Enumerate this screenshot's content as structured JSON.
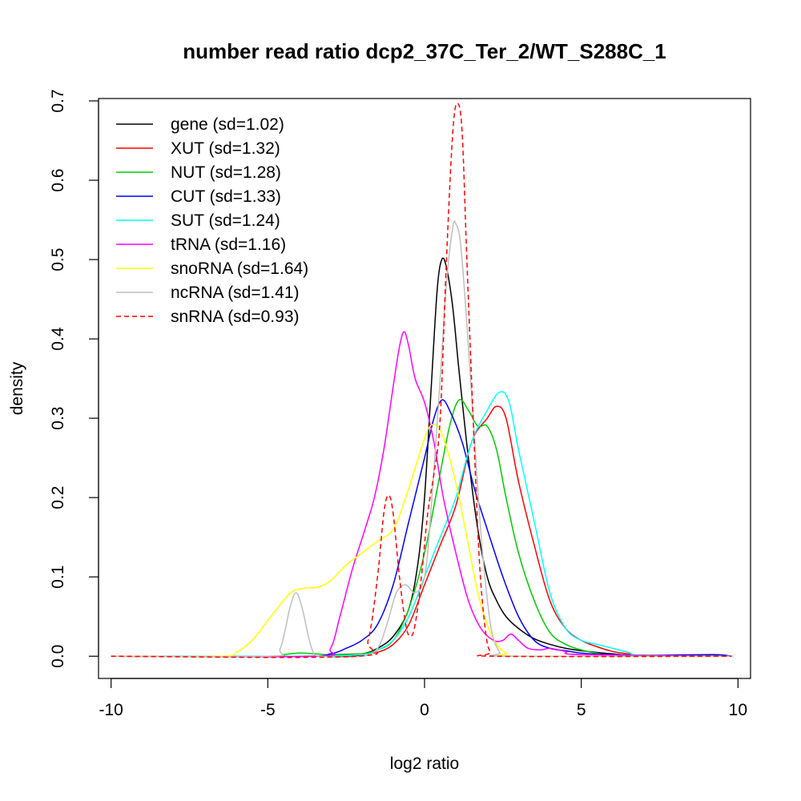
{
  "chart_data": {
    "type": "line",
    "title": "number read ratio dcp2_37C_Ter_2/WT_S288C_1",
    "xlabel": "log2 ratio",
    "ylabel": "density",
    "xlim": [
      -10.4,
      10.4
    ],
    "ylim": [
      -0.028,
      0.703
    ],
    "x_ticks": [
      -10,
      -5,
      0,
      5,
      10
    ],
    "x_tick_labels": [
      "-10",
      "-5",
      "0",
      "5",
      "10"
    ],
    "y_ticks": [
      0.0,
      0.1,
      0.2,
      0.3,
      0.4,
      0.5,
      0.6,
      0.7
    ],
    "y_tick_labels": [
      "0.0",
      "0.1",
      "0.2",
      "0.3",
      "0.4",
      "0.5",
      "0.6",
      "0.7"
    ],
    "grid": false,
    "legend_position": "top-left",
    "series": [
      {
        "name": "gene (sd=1.02)",
        "color": "#000000",
        "dash": "solid",
        "points": [
          [
            -10,
            0
          ],
          [
            -3,
            0
          ],
          [
            -2,
            0.003
          ],
          [
            -1.5,
            0.01
          ],
          [
            -1,
            0.025
          ],
          [
            -0.5,
            0.06
          ],
          [
            -0.2,
            0.12
          ],
          [
            0,
            0.2
          ],
          [
            0.2,
            0.33
          ],
          [
            0.4,
            0.46
          ],
          [
            0.55,
            0.5
          ],
          [
            0.7,
            0.49
          ],
          [
            0.9,
            0.44
          ],
          [
            1.1,
            0.36
          ],
          [
            1.4,
            0.25
          ],
          [
            1.7,
            0.16
          ],
          [
            2,
            0.1
          ],
          [
            2.3,
            0.07
          ],
          [
            2.6,
            0.05
          ],
          [
            3,
            0.035
          ],
          [
            3.5,
            0.022
          ],
          [
            4,
            0.015
          ],
          [
            4.5,
            0.01
          ],
          [
            5,
            0.007
          ],
          [
            6,
            0.003
          ],
          [
            7,
            0.001
          ],
          [
            9.8,
            0
          ]
        ]
      },
      {
        "name": "XUT (sd=1.32)",
        "color": "#ff0000",
        "dash": "solid",
        "points": [
          [
            -10,
            0
          ],
          [
            -3.5,
            0
          ],
          [
            -3,
            0.002
          ],
          [
            -2,
            0.003
          ],
          [
            -1.5,
            0.005
          ],
          [
            -1,
            0.015
          ],
          [
            -0.5,
            0.04
          ],
          [
            0,
            0.09
          ],
          [
            0.5,
            0.14
          ],
          [
            1,
            0.19
          ],
          [
            1.5,
            0.27
          ],
          [
            2,
            0.3
          ],
          [
            2.3,
            0.315
          ],
          [
            2.6,
            0.3
          ],
          [
            3,
            0.22
          ],
          [
            3.5,
            0.14
          ],
          [
            4,
            0.07
          ],
          [
            4.5,
            0.035
          ],
          [
            5,
            0.02
          ],
          [
            5.5,
            0.012
          ],
          [
            6,
            0.006
          ],
          [
            6.5,
            0.003
          ],
          [
            7,
            0.001
          ],
          [
            9.8,
            0
          ]
        ]
      },
      {
        "name": "NUT (sd=1.28)",
        "color": "#00cc00",
        "dash": "solid",
        "points": [
          [
            -10,
            0
          ],
          [
            -5,
            0
          ],
          [
            -4.5,
            0.002
          ],
          [
            -4,
            0.004
          ],
          [
            -3.5,
            0.003
          ],
          [
            -3,
            0.002
          ],
          [
            -2,
            0.003
          ],
          [
            -1.5,
            0.008
          ],
          [
            -1,
            0.02
          ],
          [
            -0.5,
            0.06
          ],
          [
            0,
            0.13
          ],
          [
            0.4,
            0.21
          ],
          [
            0.8,
            0.29
          ],
          [
            1.1,
            0.323
          ],
          [
            1.4,
            0.31
          ],
          [
            1.7,
            0.29
          ],
          [
            2,
            0.29
          ],
          [
            2.3,
            0.26
          ],
          [
            2.6,
            0.2
          ],
          [
            3,
            0.13
          ],
          [
            3.5,
            0.07
          ],
          [
            4,
            0.03
          ],
          [
            4.5,
            0.015
          ],
          [
            5,
            0.008
          ],
          [
            5.5,
            0.004
          ],
          [
            6,
            0.002
          ],
          [
            9.8,
            0
          ]
        ]
      },
      {
        "name": "CUT (sd=1.33)",
        "color": "#0000ff",
        "dash": "solid",
        "points": [
          [
            -10,
            0
          ],
          [
            -4,
            0
          ],
          [
            -3,
            0.003
          ],
          [
            -2.5,
            0.01
          ],
          [
            -2,
            0.02
          ],
          [
            -1.5,
            0.04
          ],
          [
            -1,
            0.09
          ],
          [
            -0.5,
            0.17
          ],
          [
            0,
            0.25
          ],
          [
            0.3,
            0.3
          ],
          [
            0.55,
            0.323
          ],
          [
            0.8,
            0.31
          ],
          [
            1.2,
            0.27
          ],
          [
            1.6,
            0.21
          ],
          [
            2,
            0.16
          ],
          [
            2.5,
            0.1
          ],
          [
            3,
            0.05
          ],
          [
            3.5,
            0.02
          ],
          [
            4,
            0.01
          ],
          [
            4.5,
            0.007
          ],
          [
            5,
            0.004
          ],
          [
            6,
            0.002
          ],
          [
            7,
            0.001
          ],
          [
            9.2,
            0.002
          ],
          [
            9.8,
            0
          ]
        ]
      },
      {
        "name": "SUT (sd=1.24)",
        "color": "#00ffff",
        "dash": "solid",
        "points": [
          [
            -10,
            0
          ],
          [
            -4,
            0
          ],
          [
            -2,
            0.002
          ],
          [
            -1.5,
            0.008
          ],
          [
            -1,
            0.02
          ],
          [
            -0.5,
            0.05
          ],
          [
            0,
            0.1
          ],
          [
            0.5,
            0.15
          ],
          [
            1,
            0.2
          ],
          [
            1.5,
            0.27
          ],
          [
            2,
            0.31
          ],
          [
            2.4,
            0.333
          ],
          [
            2.7,
            0.32
          ],
          [
            3,
            0.26
          ],
          [
            3.5,
            0.17
          ],
          [
            4,
            0.08
          ],
          [
            4.5,
            0.035
          ],
          [
            5,
            0.02
          ],
          [
            5.5,
            0.015
          ],
          [
            6,
            0.01
          ],
          [
            6.5,
            0.005
          ],
          [
            7,
            0.001
          ],
          [
            9.8,
            0
          ]
        ]
      },
      {
        "name": "tRNA (sd=1.16)",
        "color": "#ff00ff",
        "dash": "solid",
        "points": [
          [
            -10,
            0
          ],
          [
            -3.5,
            0
          ],
          [
            -3,
            0.01
          ],
          [
            -2.7,
            0.05
          ],
          [
            -2.3,
            0.11
          ],
          [
            -1.9,
            0.16
          ],
          [
            -1.6,
            0.2
          ],
          [
            -1.3,
            0.26
          ],
          [
            -1,
            0.34
          ],
          [
            -0.8,
            0.39
          ],
          [
            -0.65,
            0.409
          ],
          [
            -0.5,
            0.39
          ],
          [
            -0.3,
            0.35
          ],
          [
            0,
            0.32
          ],
          [
            0.3,
            0.27
          ],
          [
            0.6,
            0.2
          ],
          [
            1,
            0.13
          ],
          [
            1.4,
            0.07
          ],
          [
            1.8,
            0.035
          ],
          [
            2.2,
            0.02
          ],
          [
            2.5,
            0.02
          ],
          [
            2.75,
            0.028
          ],
          [
            3,
            0.02
          ],
          [
            3.3,
            0.01
          ],
          [
            3.7,
            0.008
          ],
          [
            4,
            0.01
          ],
          [
            4.5,
            0.006
          ],
          [
            5,
            0.002
          ],
          [
            9.8,
            0
          ]
        ]
      },
      {
        "name": "snoRNA (sd=1.64)",
        "color": "#ffff00",
        "dash": "solid",
        "points": [
          [
            -10,
            0
          ],
          [
            -6.5,
            0
          ],
          [
            -6,
            0.005
          ],
          [
            -5.5,
            0.02
          ],
          [
            -5,
            0.045
          ],
          [
            -4.5,
            0.07
          ],
          [
            -4.2,
            0.082
          ],
          [
            -3.8,
            0.086
          ],
          [
            -3.4,
            0.087
          ],
          [
            -3,
            0.095
          ],
          [
            -2.5,
            0.115
          ],
          [
            -2,
            0.13
          ],
          [
            -1.5,
            0.145
          ],
          [
            -1,
            0.16
          ],
          [
            -0.6,
            0.2
          ],
          [
            -0.2,
            0.25
          ],
          [
            0.1,
            0.285
          ],
          [
            0.3,
            0.292
          ],
          [
            0.5,
            0.285
          ],
          [
            0.8,
            0.25
          ],
          [
            1.1,
            0.2
          ],
          [
            1.4,
            0.14
          ],
          [
            1.7,
            0.08
          ],
          [
            2,
            0.04
          ],
          [
            2.3,
            0.015
          ],
          [
            2.6,
            0.004
          ],
          [
            3,
            0
          ],
          [
            9.8,
            0
          ]
        ]
      },
      {
        "name": "ncRNA (sd=1.41)",
        "color": "#bebebe",
        "dash": "solid",
        "points": [
          [
            -10,
            0
          ],
          [
            -5,
            0
          ],
          [
            -4.6,
            0.01
          ],
          [
            -4.3,
            0.06
          ],
          [
            -4.1,
            0.08
          ],
          [
            -3.9,
            0.06
          ],
          [
            -3.6,
            0.01
          ],
          [
            -3.3,
            0
          ],
          [
            -2,
            0
          ],
          [
            -1.5,
            0.01
          ],
          [
            -1.2,
            0.04
          ],
          [
            -0.9,
            0.08
          ],
          [
            -0.6,
            0.09
          ],
          [
            -0.3,
            0.08
          ],
          [
            0,
            0.1
          ],
          [
            0.2,
            0.18
          ],
          [
            0.5,
            0.35
          ],
          [
            0.7,
            0.47
          ],
          [
            0.9,
            0.54
          ],
          [
            1,
            0.545
          ],
          [
            1.15,
            0.52
          ],
          [
            1.35,
            0.42
          ],
          [
            1.55,
            0.3
          ],
          [
            1.75,
            0.18
          ],
          [
            1.95,
            0.09
          ],
          [
            2.15,
            0.03
          ],
          [
            2.4,
            0.005
          ],
          [
            2.7,
            0
          ],
          [
            9.8,
            0
          ]
        ]
      },
      {
        "name": "snRNA (sd=0.93)",
        "color": "#ff0000",
        "dash": "dashed",
        "points": [
          [
            -10,
            0
          ],
          [
            -2.2,
            0
          ],
          [
            -1.8,
            0.02
          ],
          [
            -1.5,
            0.1
          ],
          [
            -1.3,
            0.18
          ],
          [
            -1.15,
            0.203
          ],
          [
            -1,
            0.18
          ],
          [
            -0.8,
            0.1
          ],
          [
            -0.6,
            0.04
          ],
          [
            -0.45,
            0.025
          ],
          [
            -0.3,
            0.04
          ],
          [
            -0.1,
            0.1
          ],
          [
            0.1,
            0.18
          ],
          [
            0.3,
            0.23
          ],
          [
            0.5,
            0.3
          ],
          [
            0.7,
            0.5
          ],
          [
            0.9,
            0.66
          ],
          [
            1.05,
            0.697
          ],
          [
            1.2,
            0.66
          ],
          [
            1.35,
            0.5
          ],
          [
            1.55,
            0.3
          ],
          [
            1.75,
            0.12
          ],
          [
            1.95,
            0.03
          ],
          [
            2.1,
            0.005
          ],
          [
            2.3,
            0
          ],
          [
            9.8,
            0
          ]
        ]
      }
    ]
  }
}
